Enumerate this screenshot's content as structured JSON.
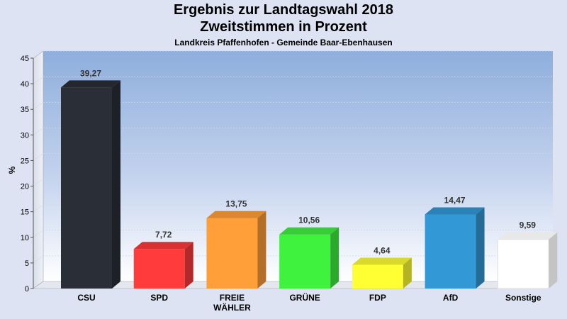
{
  "header": {
    "title_line1": "Ergebnis zur Landtagswahl 2018",
    "title_line2": "Zweitstimmen in Prozent",
    "subtitle": "Landkreis Pfaffenhofen - Gemeinde Baar-Ebenhausen"
  },
  "chart_data": {
    "type": "bar",
    "title": "Ergebnis zur Landtagswahl 2018 Zweitstimmen in Prozent",
    "subtitle": "Landkreis Pfaffenhofen - Gemeinde Baar-Ebenhausen",
    "ylabel": "%",
    "xlabel": "",
    "ylim": [
      0,
      45
    ],
    "yticks": [
      0,
      5,
      10,
      15,
      20,
      25,
      30,
      35,
      40,
      45
    ],
    "grid": true,
    "categories": [
      [
        "CSU"
      ],
      [
        "SPD"
      ],
      [
        "FREIE",
        "WÄHLER"
      ],
      [
        "GRÜNE"
      ],
      [
        "FDP"
      ],
      [
        "AfD"
      ],
      [
        "Sonstige"
      ]
    ],
    "values": [
      39.27,
      7.72,
      13.75,
      10.56,
      4.64,
      14.47,
      9.59
    ],
    "value_labels": [
      "39,27",
      "7,72",
      "13,75",
      "10,56",
      "4,64",
      "14,47",
      "9,59"
    ],
    "colors": [
      "#2a2e36",
      "#ff3b3b",
      "#ff9f3a",
      "#3ef23e",
      "#ffff33",
      "#3399d6",
      "#ffffff"
    ]
  }
}
